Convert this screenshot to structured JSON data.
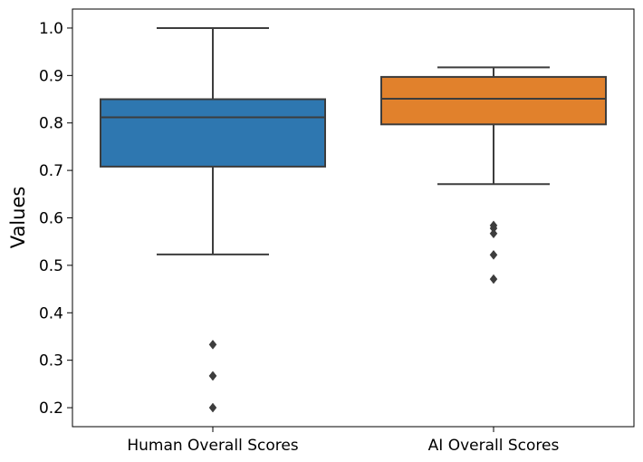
{
  "chart_data": {
    "type": "box",
    "categories": [
      "Human Overall Scores",
      "AI Overall Scores"
    ],
    "ylabel": "Values",
    "xlabel": "",
    "ylim": [
      0.16,
      1.04
    ],
    "yticks": [
      0.2,
      0.3,
      0.4,
      0.5,
      0.6,
      0.7,
      0.8,
      0.9,
      1.0
    ],
    "ytick_labels": [
      "0.2",
      "0.3",
      "0.4",
      "0.5",
      "0.6",
      "0.7",
      "0.8",
      "0.9",
      "1.0"
    ],
    "grid": false,
    "series": [
      {
        "category": "Human Overall Scores",
        "color": "#2e77b0",
        "whisker_low": 0.523,
        "q1": 0.708,
        "median": 0.812,
        "q3": 0.85,
        "whisker_high": 1.0,
        "outliers": [
          0.333,
          0.267,
          0.267,
          0.2
        ]
      },
      {
        "category": "AI Overall Scores",
        "color": "#e1812c",
        "whisker_low": 0.671,
        "q1": 0.797,
        "median": 0.851,
        "q3": 0.897,
        "whisker_high": 0.917,
        "outliers": [
          0.584,
          0.578,
          0.567,
          0.522,
          0.471
        ]
      }
    ]
  }
}
